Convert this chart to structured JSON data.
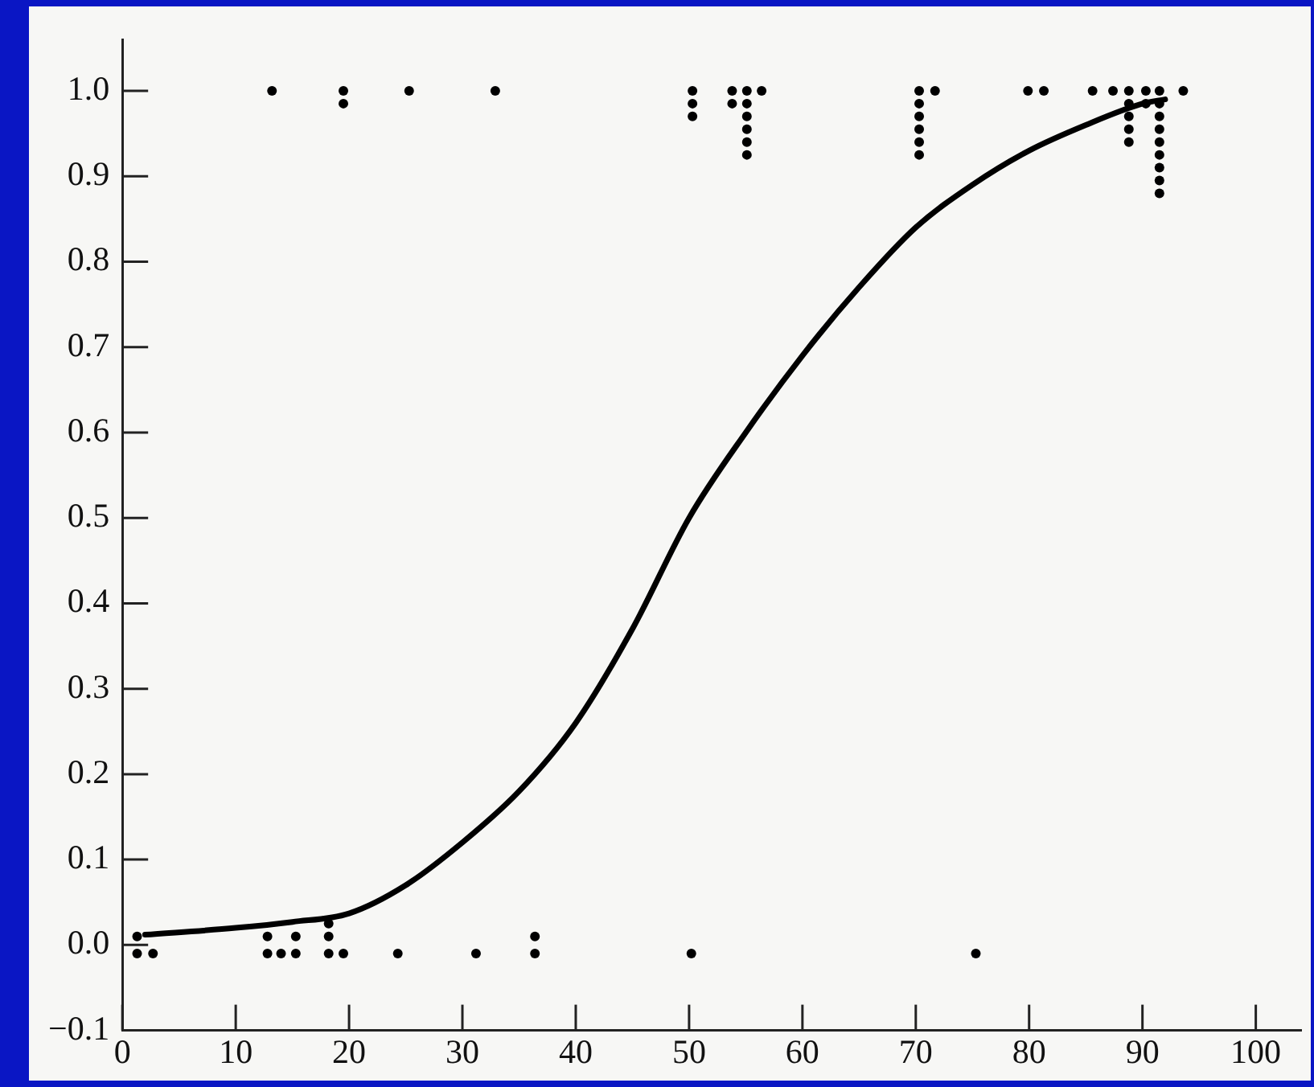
{
  "chart_data": {
    "type": "scatter",
    "xlim": [
      0,
      104
    ],
    "ylim": [
      -0.1,
      1.06
    ],
    "xticks": [
      0,
      10,
      20,
      30,
      40,
      50,
      60,
      70,
      80,
      90,
      100
    ],
    "yticks": [
      {
        "value": -0.1,
        "label": "−0.1"
      },
      {
        "value": 0,
        "label": "0.0"
      },
      {
        "value": 0.1,
        "label": "0.1"
      },
      {
        "value": 0.2,
        "label": "0.2"
      },
      {
        "value": 0.3,
        "label": "0.3"
      },
      {
        "value": 0.4,
        "label": "0.4"
      },
      {
        "value": 0.5,
        "label": "0.5"
      },
      {
        "value": 0.6,
        "label": "0.6"
      },
      {
        "value": 0.7,
        "label": "0.7"
      },
      {
        "value": 0.8,
        "label": "0.8"
      },
      {
        "value": 0.9,
        "label": "0.9"
      },
      {
        "value": 1,
        "label": "1.0"
      }
    ],
    "grid": false,
    "legend": false,
    "series": [
      {
        "color": "#000000",
        "marker": "circle",
        "x": [
          1.3,
          1.3,
          2.7,
          12.8,
          12.8,
          14,
          15.3,
          15.3,
          18.2,
          18.2,
          18.2,
          19.5,
          24.3,
          31.2,
          36.4,
          36.4,
          50.2,
          75.3,
          13.2,
          19.5,
          19.5,
          25.3,
          32.9,
          50.3,
          50.3,
          50.3,
          53.8,
          53.8,
          55.1,
          55.1,
          55.1,
          55.1,
          55.1,
          55.1,
          56.4,
          70.3,
          70.3,
          70.3,
          70.3,
          70.3,
          70.3,
          71.7,
          79.9,
          81.3,
          85.6,
          87.4,
          88.8,
          88.8,
          88.8,
          88.8,
          88.8,
          90.3,
          90.3,
          91.5,
          91.5,
          91.5,
          91.5,
          91.5,
          91.5,
          91.5,
          91.5,
          91.5,
          93.6
        ],
        "values": [
          0.01,
          -0.01,
          -0.01,
          0.01,
          -0.01,
          -0.01,
          0.01,
          -0.01,
          0.025,
          0.01,
          -0.01,
          -0.01,
          -0.01,
          -0.01,
          0.01,
          -0.01,
          -0.01,
          -0.01,
          1,
          1,
          0.985,
          1,
          1,
          1,
          0.985,
          0.97,
          1,
          0.985,
          1,
          0.985,
          0.97,
          0.955,
          0.94,
          0.925,
          1,
          1,
          0.985,
          0.97,
          0.955,
          0.94,
          0.925,
          1,
          1,
          1,
          1,
          1,
          1,
          0.985,
          0.97,
          0.955,
          0.94,
          1,
          0.985,
          1,
          0.985,
          0.97,
          0.955,
          0.94,
          0.925,
          0.91,
          0.895,
          0.88,
          1
        ]
      },
      {
        "type": "line",
        "color": "#000000",
        "marker": "none",
        "line_style": "solid",
        "x": [
          2,
          10,
          15,
          20,
          25,
          30,
          35,
          40,
          45,
          50,
          55,
          60,
          65,
          70,
          75,
          80,
          85,
          90,
          92
        ],
        "values": [
          0.012,
          0.02,
          0.027,
          0.037,
          0.07,
          0.12,
          0.18,
          0.26,
          0.37,
          0.5,
          0.6,
          0.69,
          0.77,
          0.84,
          0.89,
          0.93,
          0.96,
          0.985,
          0.99
        ]
      }
    ]
  }
}
